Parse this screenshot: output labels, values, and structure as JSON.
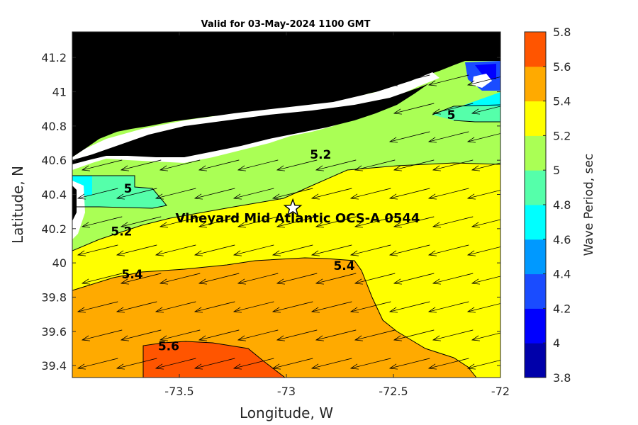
{
  "title": "Valid for 03-May-2024 1100 GMT",
  "xlabel": "Longitude, W",
  "ylabel": "Latitude, N",
  "colorbar_label": "Wave Period, sec",
  "site_label": "Vineyard Mid Atlantic OCS-A 0544",
  "site_marker": {
    "lon": -72.97,
    "lat": 40.32,
    "icon": "star-icon"
  },
  "x_ticks": [
    {
      "value": -73.5,
      "label": "-73.5"
    },
    {
      "value": -73,
      "label": "-73"
    },
    {
      "value": -72.5,
      "label": "-72.5"
    },
    {
      "value": -72,
      "label": "-72"
    }
  ],
  "y_ticks": [
    {
      "value": 39.4,
      "label": "39.4"
    },
    {
      "value": 39.6,
      "label": "39.6"
    },
    {
      "value": 39.8,
      "label": "39.8"
    },
    {
      "value": 40,
      "label": "40"
    },
    {
      "value": 40.2,
      "label": "40.2"
    },
    {
      "value": 40.4,
      "label": "40.4"
    },
    {
      "value": 40.6,
      "label": "40.6"
    },
    {
      "value": 40.8,
      "label": "40.8"
    },
    {
      "value": 41,
      "label": "41"
    },
    {
      "value": 41.2,
      "label": "41.2"
    }
  ],
  "colorbar_ticks": [
    {
      "value": 3.8,
      "label": "3.8"
    },
    {
      "value": 4,
      "label": "4"
    },
    {
      "value": 4.2,
      "label": "4.2"
    },
    {
      "value": 4.4,
      "label": "4.4"
    },
    {
      "value": 4.6,
      "label": "4.6"
    },
    {
      "value": 4.8,
      "label": "4.8"
    },
    {
      "value": 5,
      "label": "5"
    },
    {
      "value": 5.2,
      "label": "5.2"
    },
    {
      "value": 5.4,
      "label": "5.4"
    },
    {
      "value": 5.6,
      "label": "5.6"
    },
    {
      "value": 5.8,
      "label": "5.8"
    }
  ],
  "colors": {
    "3.8": "#0000aa",
    "4.0": "#0000ff",
    "4.2": "#1a4cff",
    "4.4": "#0099ff",
    "4.6": "#00ffff",
    "4.8": "#55ffaa",
    "5.0": "#aaff55",
    "5.2": "#ffff00",
    "5.4": "#ffaa00",
    "5.6": "#ff5500",
    "land": "#000000"
  },
  "contour_labels": [
    {
      "text": "5",
      "lon": -72.23,
      "lat": 40.84
    },
    {
      "text": "5.2",
      "lon": -72.84,
      "lat": 40.61
    },
    {
      "text": "5",
      "lon": -73.74,
      "lat": 40.41
    },
    {
      "text": "5.2",
      "lon": -73.77,
      "lat": 40.16
    },
    {
      "text": "5.4",
      "lon": -73.72,
      "lat": 39.91
    },
    {
      "text": "5.4",
      "lon": -72.73,
      "lat": 39.96
    },
    {
      "text": "5.6",
      "lon": -73.55,
      "lat": 39.49
    }
  ],
  "chart_data": {
    "type": "heatmap",
    "title": "Valid for 03-May-2024 1100 GMT",
    "xlabel": "Longitude, W",
    "ylabel": "Latitude, N",
    "xlim": [
      -74,
      -72
    ],
    "ylim": [
      39.33,
      41.35
    ],
    "colorbar": {
      "label": "Wave Period, sec",
      "range": [
        3.8,
        5.8
      ],
      "step": 0.2
    },
    "variable": "Wave Period, sec",
    "overlay": "wave direction arrows (pointing west-southwest)"
  }
}
